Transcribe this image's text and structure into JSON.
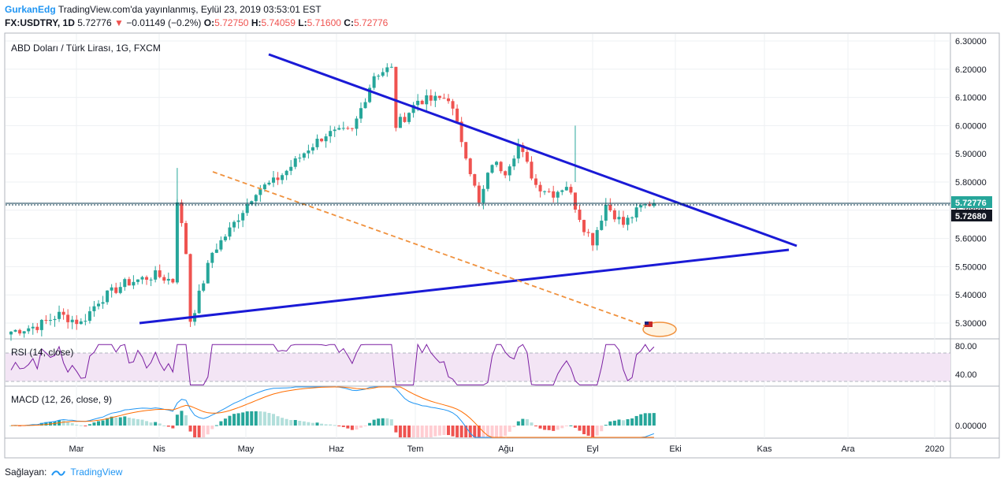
{
  "header": {
    "username": "GurkanEdg",
    "published": "TradingView.com'da yayınlanmış, Eylül 23, 2019 03:53:01 EST",
    "symbol": "FX:USDTRY, 1D",
    "last": "5.72776",
    "change": "−0.01149 (−0.2%)",
    "open_label": "O:",
    "open": "5.72750",
    "high_label": "H:",
    "high": "5.74059",
    "low_label": "L:",
    "low": "5.71600",
    "close_label": "C:",
    "close": "5.72776"
  },
  "main_label": "ABD Doları / Türk Lirası, 1G, FXCM",
  "rsi_label": "RSI (14, close)",
  "macd_label": "MACD (12, 26, close, 9)",
  "footer": {
    "prefix": "Sağlayan:",
    "brand": "TradingView"
  },
  "colors": {
    "up": "#26a69a",
    "down": "#ef5350",
    "trend": "#1a1ad6",
    "dashed": "#f0913d",
    "rsi": "#7b1fa2",
    "rsi_band": "#f3e5f5",
    "macd": "#2196f3",
    "signal": "#ff6d00",
    "price_line": "#0d3b4f",
    "last_tag": "#26a69a",
    "prev_tag": "#131722"
  },
  "chart_data": {
    "type": "candlestick",
    "title": "ABD Doları / Türk Lirası, 1G, FXCM",
    "price_axis": {
      "ticks": [
        "6.30000",
        "6.20000",
        "6.10000",
        "6.00000",
        "5.90000",
        "5.80000",
        "5.70000",
        "5.60000",
        "5.50000",
        "5.40000",
        "5.30000"
      ],
      "range": [
        5.25,
        6.33
      ]
    },
    "time_axis": {
      "ticks": [
        "Mar",
        "Nis",
        "May",
        "Haz",
        "Tem",
        "Ağu",
        "Eyl",
        "Eki",
        "Kas",
        "Ara",
        "2020"
      ]
    },
    "last_price_tag": "5.72776",
    "second_price_tag": "5.72680",
    "candle_count": 148,
    "anchors": [
      [
        0,
        5.27
      ],
      [
        6,
        5.29
      ],
      [
        11,
        5.33
      ],
      [
        16,
        5.3
      ],
      [
        20,
        5.38
      ],
      [
        26,
        5.44
      ],
      [
        33,
        5.47
      ],
      [
        37,
        5.45
      ],
      [
        38,
        5.74
      ],
      [
        40,
        5.55
      ],
      [
        41,
        5.31
      ],
      [
        42,
        5.35
      ],
      [
        46,
        5.55
      ],
      [
        50,
        5.63
      ],
      [
        56,
        5.77
      ],
      [
        60,
        5.8
      ],
      [
        63,
        5.84
      ],
      [
        68,
        5.92
      ],
      [
        72,
        5.97
      ],
      [
        78,
        5.98
      ],
      [
        83,
        6.18
      ],
      [
        86,
        6.2
      ],
      [
        87,
        6.2
      ],
      [
        88,
        6.0
      ],
      [
        90,
        6.03
      ],
      [
        93,
        6.09
      ],
      [
        96,
        6.09
      ],
      [
        100,
        6.1
      ],
      [
        104,
        5.9
      ],
      [
        107,
        5.72
      ],
      [
        110,
        5.87
      ],
      [
        113,
        5.84
      ],
      [
        116,
        5.93
      ],
      [
        120,
        5.79
      ],
      [
        124,
        5.76
      ],
      [
        127,
        5.79
      ],
      [
        131,
        5.64
      ],
      [
        133,
        5.59
      ],
      [
        136,
        5.72
      ],
      [
        140,
        5.65
      ],
      [
        144,
        5.71
      ],
      [
        147,
        5.73
      ]
    ],
    "trendlines": [
      {
        "name": "",
        "from": [
          341,
          69
        ],
        "to": [
          1011,
          312
        ]
      },
      {
        "name": "",
        "from": [
          177,
          410
        ],
        "to": [
          1001,
          317
        ]
      },
      {
        "name": "",
        "from": [
          270,
          218
        ],
        "to": [
          820,
          414
        ],
        "dashed": true
      }
    ],
    "rsi": {
      "levels": [
        70,
        30
      ],
      "ticks": [
        "80.00",
        "40.00"
      ]
    },
    "macd": {
      "ticks": [
        "0.00000"
      ]
    }
  }
}
